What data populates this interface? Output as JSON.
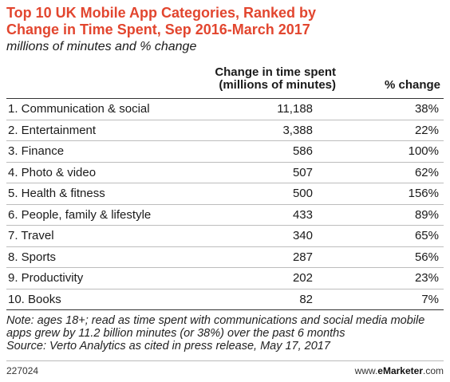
{
  "title": "Top 10 UK Mobile App Categories, Ranked by Change in Time Spent, Sep 2016-March 2017",
  "subtitle": "millions of minutes and % change",
  "chart_data": {
    "type": "table",
    "columns": [
      "",
      "Change in time spent (millions of minutes)",
      "% change"
    ],
    "rows": [
      {
        "category": "1. Communication & social",
        "value": "11,188",
        "pct": "38%"
      },
      {
        "category": "2. Entertainment",
        "value": "3,388",
        "pct": "22%"
      },
      {
        "category": "3. Finance",
        "value": "586",
        "pct": "100%"
      },
      {
        "category": "4. Photo & video",
        "value": "507",
        "pct": "62%"
      },
      {
        "category": "5. Health & fitness",
        "value": "500",
        "pct": "156%"
      },
      {
        "category": "6. People, family & lifestyle",
        "value": "433",
        "pct": "89%"
      },
      {
        "category": "7. Travel",
        "value": "340",
        "pct": "65%"
      },
      {
        "category": "8. Sports",
        "value": "287",
        "pct": "56%"
      },
      {
        "category": "9. Productivity",
        "value": "202",
        "pct": "23%"
      },
      {
        "category": "10. Books",
        "value": "82",
        "pct": "7%"
      }
    ]
  },
  "header": {
    "col2_line1": "Change in time spent",
    "col2_line2": "(millions of minutes)",
    "col3": "% change"
  },
  "note": "Note: ages 18+; read as time spent with communications and social media mobile apps grew by 11.2 billion minutes (or 38%) over the past 6 months",
  "source": "Source: Verto Analytics as cited in press release, May 17, 2017",
  "footer": {
    "chart_id": "227024",
    "brand_prefix": "www.",
    "brand_name": "eMarketer",
    "brand_suffix": ".com"
  },
  "colors": {
    "title": "#e2462f"
  }
}
